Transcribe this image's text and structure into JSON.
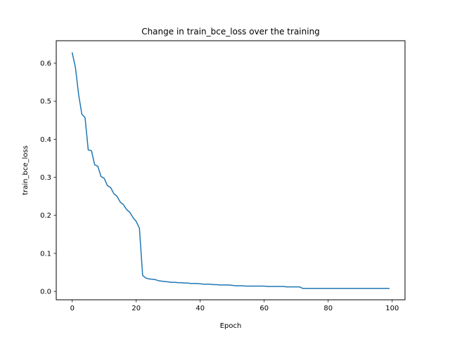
{
  "chart_data": {
    "type": "line",
    "title": "Change in train_bce_loss over the training",
    "xlabel": "Epoch",
    "ylabel": "train_bce_loss",
    "xlim": [
      -5,
      104
    ],
    "ylim": [
      -0.022,
      0.659
    ],
    "xticks": [
      0,
      20,
      40,
      60,
      80,
      100
    ],
    "yticks": [
      0.0,
      0.1,
      0.2,
      0.3,
      0.4,
      0.5,
      0.6
    ],
    "grid": false,
    "legend": "none",
    "series": [
      {
        "color": "#1f77b4",
        "x": [
          0,
          1,
          2,
          3,
          4,
          5,
          6,
          7,
          8,
          9,
          10,
          11,
          12,
          13,
          14,
          15,
          16,
          17,
          18,
          19,
          20,
          21,
          22,
          23,
          24,
          25,
          26,
          27,
          28,
          29,
          30,
          31,
          32,
          33,
          34,
          35,
          36,
          37,
          38,
          39,
          40,
          41,
          42,
          43,
          44,
          45,
          46,
          47,
          48,
          49,
          50,
          51,
          52,
          53,
          54,
          55,
          56,
          57,
          58,
          59,
          60,
          61,
          62,
          63,
          64,
          65,
          66,
          67,
          68,
          69,
          70,
          71,
          72,
          73,
          74,
          75,
          76,
          77,
          78,
          79,
          80,
          81,
          82,
          83,
          84,
          85,
          86,
          87,
          88,
          89,
          90,
          91,
          92,
          93,
          94,
          95,
          96,
          97,
          98,
          99
        ],
        "y": [
          0.627,
          0.588,
          0.517,
          0.466,
          0.457,
          0.372,
          0.37,
          0.333,
          0.329,
          0.302,
          0.297,
          0.278,
          0.273,
          0.257,
          0.25,
          0.235,
          0.228,
          0.215,
          0.208,
          0.194,
          0.184,
          0.166,
          0.042,
          0.035,
          0.033,
          0.032,
          0.031,
          0.028,
          0.027,
          0.026,
          0.025,
          0.024,
          0.024,
          0.023,
          0.023,
          0.022,
          0.022,
          0.021,
          0.021,
          0.021,
          0.02,
          0.019,
          0.019,
          0.019,
          0.018,
          0.018,
          0.017,
          0.017,
          0.017,
          0.017,
          0.016,
          0.015,
          0.015,
          0.015,
          0.014,
          0.014,
          0.014,
          0.014,
          0.014,
          0.014,
          0.014,
          0.013,
          0.013,
          0.013,
          0.013,
          0.013,
          0.013,
          0.012,
          0.012,
          0.012,
          0.012,
          0.012,
          0.008,
          0.008,
          0.008,
          0.008,
          0.008,
          0.008,
          0.008,
          0.008,
          0.008,
          0.008,
          0.008,
          0.008,
          0.008,
          0.008,
          0.008,
          0.008,
          0.008,
          0.008,
          0.008,
          0.008,
          0.008,
          0.008,
          0.008,
          0.008,
          0.008,
          0.008,
          0.008,
          0.008
        ]
      }
    ]
  }
}
